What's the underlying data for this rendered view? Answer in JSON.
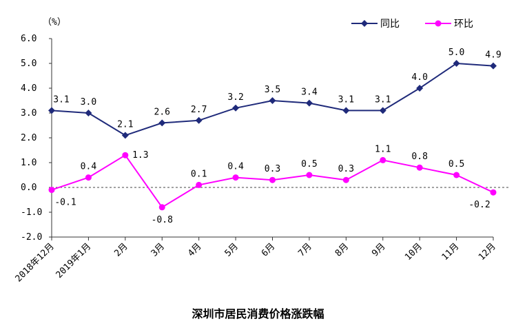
{
  "chart_data": {
    "type": "line",
    "title": "深圳市居民消费价格涨跌幅",
    "ylabel": "（%）",
    "xlabel": "",
    "categories": [
      "2018年12月",
      "2019年1月",
      "2月",
      "3月",
      "4月",
      "5月",
      "6月",
      "7月",
      "8月",
      "9月",
      "10月",
      "11月",
      "12月"
    ],
    "ylim": [
      -2.0,
      6.0
    ],
    "yticks": [
      "6.0",
      "5.0",
      "4.0",
      "3.0",
      "2.0",
      "1.0",
      "0.0",
      "-1.0",
      "-2.0"
    ],
    "ytick_values": [
      6,
      5,
      4,
      3,
      2,
      1,
      0,
      -1,
      -2
    ],
    "legend_position": "top-right",
    "zero_line": "dashed",
    "series": [
      {
        "name": "同比",
        "color": "#1f2a7a",
        "marker": "diamond",
        "values": [
          3.1,
          3.0,
          2.1,
          2.6,
          2.7,
          3.2,
          3.5,
          3.4,
          3.1,
          3.1,
          4.0,
          5.0,
          4.9
        ],
        "labels": [
          "3.1",
          "3.0",
          "2.1",
          "2.6",
          "2.7",
          "3.2",
          "3.5",
          "3.4",
          "3.1",
          "3.1",
          "4.0",
          "5.0",
          "4.9"
        ]
      },
      {
        "name": "环比",
        "color": "#ff00ff",
        "marker": "circle",
        "values": [
          -0.1,
          0.4,
          1.3,
          -0.8,
          0.1,
          0.4,
          0.3,
          0.5,
          0.3,
          1.1,
          0.8,
          0.5,
          -0.2
        ],
        "labels": [
          "-0.1",
          "0.4",
          "1.3",
          "-0.8",
          "0.1",
          "0.4",
          "0.3",
          "0.5",
          "0.3",
          "1.1",
          "0.8",
          "0.5",
          "-0.2"
        ]
      }
    ]
  }
}
